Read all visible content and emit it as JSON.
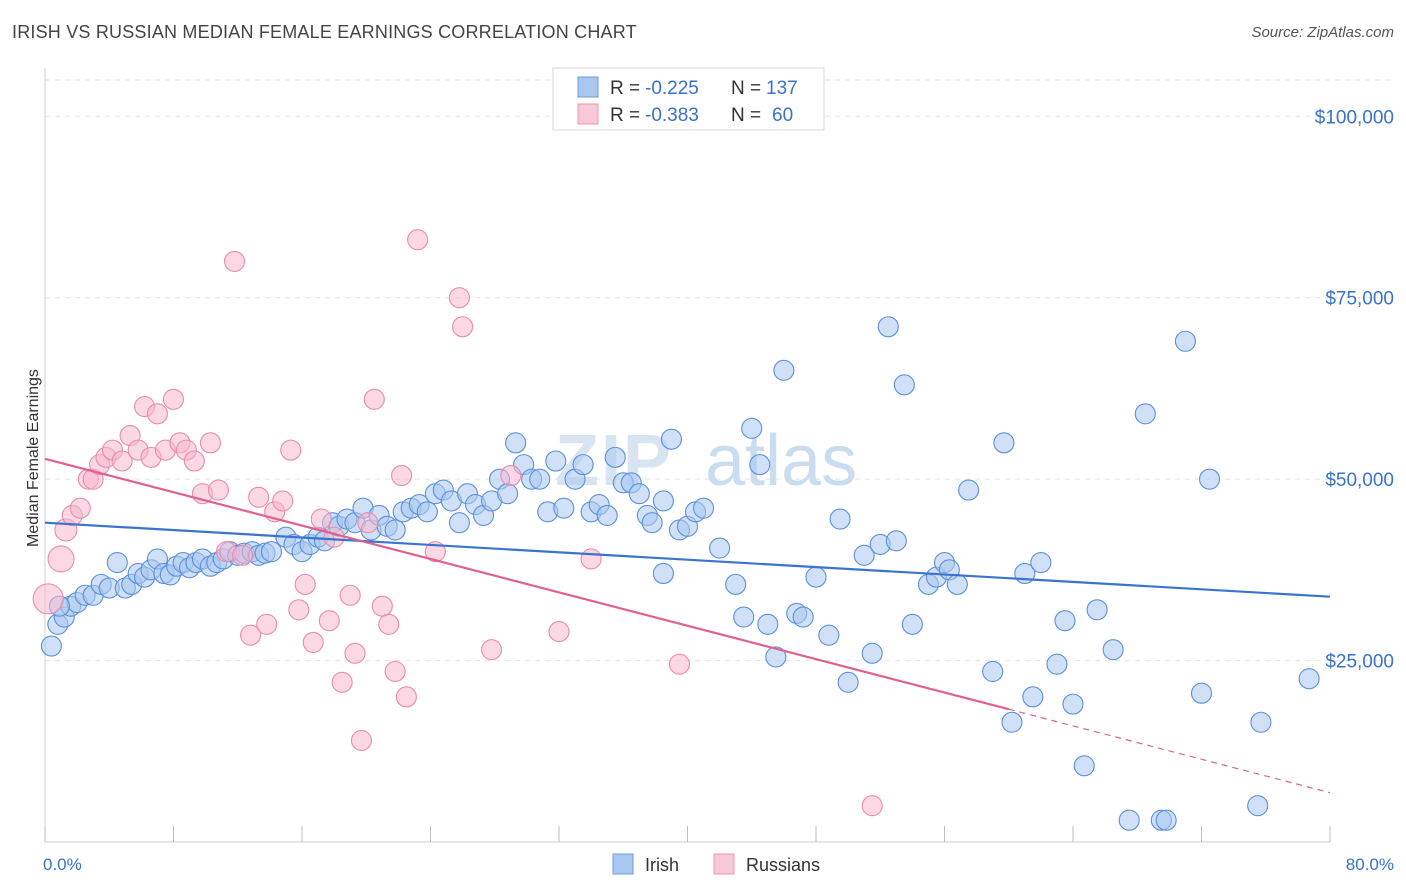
{
  "header": {
    "title": "IRISH VS RUSSIAN MEDIAN FEMALE EARNINGS CORRELATION CHART",
    "source": "Source: ZipAtlas.com"
  },
  "watermark": {
    "zip": "ZIP",
    "atlas": "atlas"
  },
  "legend": {
    "rows": [
      {
        "r_label": "R =",
        "r_value": "-0.225",
        "n_label": "N =",
        "n_value": "137",
        "color": "#a9c8f0"
      },
      {
        "r_label": "R =",
        "r_value": "-0.383",
        "n_label": "N =",
        "n_value": "60",
        "color": "#f7b8cd"
      }
    ]
  },
  "bottom_legend": {
    "irish": "Irish",
    "russians": "Russians"
  },
  "chart_data": {
    "type": "scatter",
    "xlabel": "",
    "ylabel": "Median Female Earnings",
    "xlim": [
      0,
      80
    ],
    "ylim": [
      0,
      105000
    ],
    "x_tick_labels": {
      "left": "0.0%",
      "right": "80.0%"
    },
    "y_ticks": [
      {
        "value": 25000,
        "label": "$25,000"
      },
      {
        "value": 50000,
        "label": "$50,000"
      },
      {
        "value": 75000,
        "label": "$75,000"
      },
      {
        "value": 100000,
        "label": "$100,000"
      }
    ],
    "grid": true,
    "colors": {
      "irish": "#3a74cf",
      "irish_fill": "#a9c8f0",
      "russians": "#e0608f",
      "russians_fill": "#f7b8cd"
    },
    "series": [
      {
        "name": "Irish",
        "trend": {
          "x": [
            0,
            80
          ],
          "y": [
            44000,
            33800
          ]
        },
        "points": [
          [
            0.4,
            27000
          ],
          [
            0.8,
            30000
          ],
          [
            1.2,
            31000
          ],
          [
            1.6,
            32500
          ],
          [
            2.0,
            33000
          ],
          [
            2.5,
            34000
          ],
          [
            3.0,
            34000
          ],
          [
            3.5,
            35500
          ],
          [
            4.0,
            35000
          ],
          [
            4.5,
            38500
          ],
          [
            5.0,
            35000
          ],
          [
            5.4,
            35500
          ],
          [
            5.8,
            37000
          ],
          [
            6.2,
            36500
          ],
          [
            6.6,
            37500
          ],
          [
            7.0,
            39000
          ],
          [
            7.4,
            37000
          ],
          [
            7.8,
            36800
          ],
          [
            8.2,
            38000
          ],
          [
            8.6,
            38500
          ],
          [
            9.0,
            37800
          ],
          [
            9.4,
            38500
          ],
          [
            9.8,
            39000
          ],
          [
            10.3,
            38000
          ],
          [
            10.7,
            38500
          ],
          [
            11.1,
            39000
          ],
          [
            11.5,
            40000
          ],
          [
            12.0,
            39500
          ],
          [
            12.4,
            39800
          ],
          [
            12.9,
            40000
          ],
          [
            13.3,
            39500
          ],
          [
            13.7,
            39800
          ],
          [
            14.1,
            40000
          ],
          [
            15.0,
            42000
          ],
          [
            15.5,
            41000
          ],
          [
            16.0,
            40000
          ],
          [
            16.5,
            41000
          ],
          [
            17.0,
            42000
          ],
          [
            17.4,
            41500
          ],
          [
            17.9,
            44000
          ],
          [
            18.3,
            43500
          ],
          [
            18.8,
            44500
          ],
          [
            19.3,
            44000
          ],
          [
            19.8,
            46000
          ],
          [
            20.3,
            43000
          ],
          [
            20.8,
            45000
          ],
          [
            21.3,
            43500
          ],
          [
            21.8,
            43000
          ],
          [
            22.3,
            45500
          ],
          [
            22.8,
            46000
          ],
          [
            23.3,
            46500
          ],
          [
            23.8,
            45500
          ],
          [
            24.3,
            48000
          ],
          [
            24.8,
            48500
          ],
          [
            25.3,
            47000
          ],
          [
            25.8,
            44000
          ],
          [
            26.3,
            48000
          ],
          [
            26.8,
            46500
          ],
          [
            27.3,
            45000
          ],
          [
            27.8,
            47000
          ],
          [
            28.3,
            50000
          ],
          [
            28.8,
            48000
          ],
          [
            29.3,
            55000
          ],
          [
            29.8,
            52000
          ],
          [
            30.3,
            50000
          ],
          [
            30.8,
            50000
          ],
          [
            31.3,
            45500
          ],
          [
            31.8,
            52500
          ],
          [
            32.3,
            46000
          ],
          [
            33.0,
            50000
          ],
          [
            33.5,
            52000
          ],
          [
            34.0,
            45500
          ],
          [
            34.5,
            46500
          ],
          [
            35.0,
            45000
          ],
          [
            35.5,
            53000
          ],
          [
            36.0,
            49500
          ],
          [
            36.5,
            49500
          ],
          [
            37.0,
            48000
          ],
          [
            37.5,
            45000
          ],
          [
            37.8,
            44000
          ],
          [
            38.5,
            47000
          ],
          [
            38.5,
            37000
          ],
          [
            39.0,
            55500
          ],
          [
            39.5,
            43000
          ],
          [
            40.0,
            43500
          ],
          [
            40.5,
            45500
          ],
          [
            41.0,
            46000
          ],
          [
            42.0,
            40500
          ],
          [
            43.0,
            35500
          ],
          [
            43.5,
            31000
          ],
          [
            44.0,
            57000
          ],
          [
            44.5,
            52000
          ],
          [
            45.0,
            30000
          ],
          [
            45.5,
            25500
          ],
          [
            46.0,
            65000
          ],
          [
            46.8,
            31500
          ],
          [
            47.2,
            31000
          ],
          [
            48.0,
            36500
          ],
          [
            48.8,
            28500
          ],
          [
            49.5,
            44500
          ],
          [
            50.0,
            22000
          ],
          [
            51.0,
            39500
          ],
          [
            51.5,
            26000
          ],
          [
            52.0,
            41000
          ],
          [
            52.5,
            71000
          ],
          [
            53.0,
            41500
          ],
          [
            53.5,
            63000
          ],
          [
            54.0,
            30000
          ],
          [
            55.0,
            35500
          ],
          [
            55.5,
            36500
          ],
          [
            56.0,
            38500
          ],
          [
            56.3,
            37500
          ],
          [
            56.8,
            35500
          ],
          [
            57.5,
            48500
          ],
          [
            59.0,
            23500
          ],
          [
            59.7,
            55000
          ],
          [
            60.2,
            16500
          ],
          [
            61.0,
            37000
          ],
          [
            61.5,
            20000
          ],
          [
            62.0,
            38500
          ],
          [
            63.0,
            24500
          ],
          [
            63.5,
            30500
          ],
          [
            64.0,
            19000
          ],
          [
            64.7,
            10500
          ],
          [
            65.5,
            32000
          ],
          [
            66.5,
            26500
          ],
          [
            67.5,
            3000
          ],
          [
            68.5,
            59000
          ],
          [
            69.5,
            3000
          ],
          [
            69.8,
            3000
          ],
          [
            71.0,
            69000
          ],
          [
            72.0,
            20500
          ],
          [
            72.5,
            50000
          ],
          [
            75.5,
            5000
          ],
          [
            75.7,
            16500
          ],
          [
            78.7,
            22500
          ],
          [
            0.9,
            32500
          ]
        ]
      },
      {
        "name": "Russians",
        "trend": {
          "x": [
            0,
            60
          ],
          "y": [
            52800,
            18300
          ]
        },
        "trend_dashed": {
          "x": [
            60,
            80
          ],
          "y": [
            18300,
            6800
          ]
        },
        "points": [
          [
            0.2,
            33500
          ],
          [
            1.0,
            39000
          ],
          [
            1.3,
            43000
          ],
          [
            1.7,
            45000
          ],
          [
            2.2,
            46000
          ],
          [
            2.7,
            50000
          ],
          [
            3.0,
            50000
          ],
          [
            3.4,
            52000
          ],
          [
            3.8,
            53000
          ],
          [
            4.2,
            54000
          ],
          [
            4.8,
            52500
          ],
          [
            5.3,
            56000
          ],
          [
            5.8,
            54000
          ],
          [
            6.2,
            60000
          ],
          [
            6.6,
            53000
          ],
          [
            7.0,
            59000
          ],
          [
            7.5,
            54000
          ],
          [
            8.0,
            61000
          ],
          [
            8.4,
            55000
          ],
          [
            8.8,
            54000
          ],
          [
            9.3,
            52500
          ],
          [
            9.8,
            48000
          ],
          [
            10.3,
            55000
          ],
          [
            10.8,
            48500
          ],
          [
            11.3,
            40000
          ],
          [
            11.8,
            80000
          ],
          [
            12.3,
            39500
          ],
          [
            12.8,
            28500
          ],
          [
            13.3,
            47500
          ],
          [
            13.8,
            30000
          ],
          [
            14.3,
            45500
          ],
          [
            14.8,
            47000
          ],
          [
            15.3,
            54000
          ],
          [
            15.8,
            32000
          ],
          [
            16.2,
            35500
          ],
          [
            16.7,
            27500
          ],
          [
            17.2,
            44500
          ],
          [
            17.7,
            30500
          ],
          [
            18.0,
            42000
          ],
          [
            18.5,
            22000
          ],
          [
            19.0,
            34000
          ],
          [
            19.3,
            26000
          ],
          [
            19.7,
            14000
          ],
          [
            20.1,
            44000
          ],
          [
            20.5,
            61000
          ],
          [
            21.0,
            32500
          ],
          [
            21.4,
            30000
          ],
          [
            21.8,
            23500
          ],
          [
            22.2,
            50500
          ],
          [
            22.5,
            20000
          ],
          [
            23.2,
            83000
          ],
          [
            24.3,
            40000
          ],
          [
            25.8,
            75000
          ],
          [
            26.0,
            71000
          ],
          [
            27.8,
            26500
          ],
          [
            29.0,
            50500
          ],
          [
            32.0,
            29000
          ],
          [
            34.0,
            39000
          ],
          [
            39.5,
            24500
          ],
          [
            51.5,
            5000
          ]
        ]
      }
    ]
  }
}
